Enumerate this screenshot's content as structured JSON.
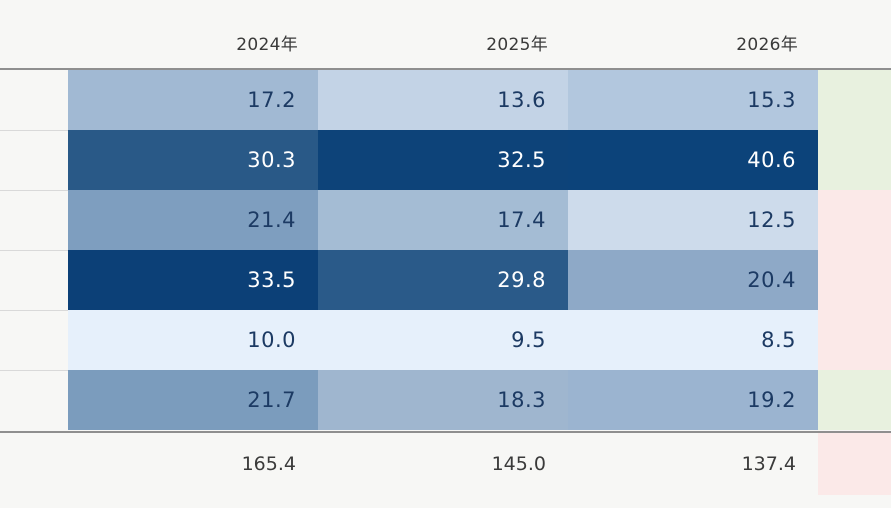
{
  "columns": [
    "2024年",
    "2025年",
    "2026年"
  ],
  "rows": [
    {
      "values": [
        "17.2",
        "13.6",
        "15.3"
      ],
      "colors": [
        "#a1b9d3",
        "#c3d3e6",
        "#b2c7de"
      ],
      "dark": [
        false,
        false,
        false
      ],
      "trend_color": "#e8f1df"
    },
    {
      "values": [
        "30.3",
        "32.5",
        "40.6"
      ],
      "colors": [
        "#295987",
        "#0d4379",
        "#0c437a"
      ],
      "dark": [
        true,
        true,
        true
      ],
      "trend_color": "#e8f1df"
    },
    {
      "values": [
        "21.4",
        "17.4",
        "12.5"
      ],
      "colors": [
        "#7e9ebf",
        "#a4bcd4",
        "#cddbeb"
      ],
      "dark": [
        false,
        false,
        false
      ],
      "trend_color": "#fbe9e8"
    },
    {
      "values": [
        "33.5",
        "29.8",
        "20.4"
      ],
      "colors": [
        "#0c4077",
        "#2a5a89",
        "#8ea9c7"
      ],
      "dark": [
        true,
        true,
        false
      ],
      "trend_color": "#fbe9e8"
    },
    {
      "values": [
        "10.0",
        "9.5",
        "8.5"
      ],
      "colors": [
        "#e6f0fb",
        "#e6f0fb",
        "#e6f0fb"
      ],
      "dark": [
        false,
        false,
        false
      ],
      "trend_color": "#fbe9e8"
    },
    {
      "values": [
        "21.7",
        "18.3",
        "19.2"
      ],
      "colors": [
        "#7b9cbd",
        "#9fb6cf",
        "#9bb4d0"
      ],
      "dark": [
        false,
        false,
        false
      ],
      "trend_color": "#e8f1df"
    }
  ],
  "totals": {
    "values": [
      "165.4",
      "145.0",
      "137.4"
    ],
    "trend_color": "#fbe9e8"
  }
}
